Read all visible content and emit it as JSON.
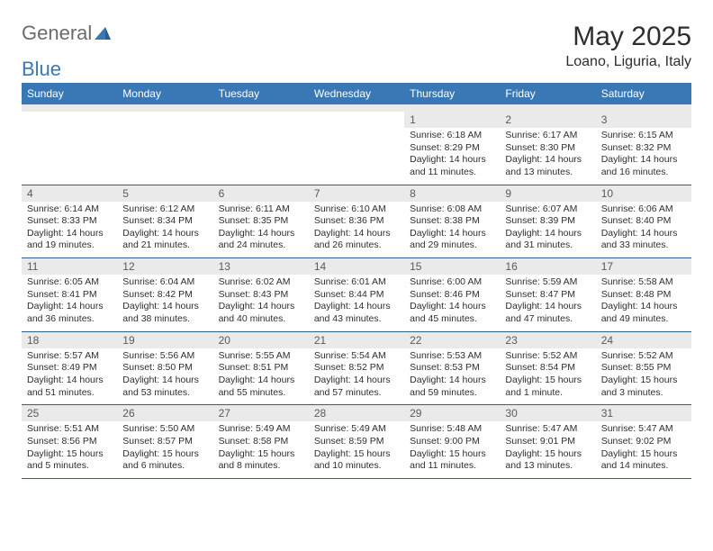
{
  "brand": {
    "part1": "General",
    "part2": "Blue"
  },
  "title": "May 2025",
  "subtitle": "Loano, Liguria, Italy",
  "colors": {
    "header_bg": "#3a78b5",
    "header_text": "#ffffff",
    "band_bg": "#eaeaea",
    "row_border": "#2f5e8a",
    "text": "#2e2e2e",
    "logo_gray": "#6b6b6b",
    "logo_blue": "#3a78b5"
  },
  "day_headers": [
    "Sunday",
    "Monday",
    "Tuesday",
    "Wednesday",
    "Thursday",
    "Friday",
    "Saturday"
  ],
  "weeks": [
    [
      null,
      null,
      null,
      null,
      {
        "n": "1",
        "sunrise": "6:18 AM",
        "sunset": "8:29 PM",
        "daylight": "14 hours and 11 minutes."
      },
      {
        "n": "2",
        "sunrise": "6:17 AM",
        "sunset": "8:30 PM",
        "daylight": "14 hours and 13 minutes."
      },
      {
        "n": "3",
        "sunrise": "6:15 AM",
        "sunset": "8:32 PM",
        "daylight": "14 hours and 16 minutes."
      }
    ],
    [
      {
        "n": "4",
        "sunrise": "6:14 AM",
        "sunset": "8:33 PM",
        "daylight": "14 hours and 19 minutes."
      },
      {
        "n": "5",
        "sunrise": "6:12 AM",
        "sunset": "8:34 PM",
        "daylight": "14 hours and 21 minutes."
      },
      {
        "n": "6",
        "sunrise": "6:11 AM",
        "sunset": "8:35 PM",
        "daylight": "14 hours and 24 minutes."
      },
      {
        "n": "7",
        "sunrise": "6:10 AM",
        "sunset": "8:36 PM",
        "daylight": "14 hours and 26 minutes."
      },
      {
        "n": "8",
        "sunrise": "6:08 AM",
        "sunset": "8:38 PM",
        "daylight": "14 hours and 29 minutes."
      },
      {
        "n": "9",
        "sunrise": "6:07 AM",
        "sunset": "8:39 PM",
        "daylight": "14 hours and 31 minutes."
      },
      {
        "n": "10",
        "sunrise": "6:06 AM",
        "sunset": "8:40 PM",
        "daylight": "14 hours and 33 minutes."
      }
    ],
    [
      {
        "n": "11",
        "sunrise": "6:05 AM",
        "sunset": "8:41 PM",
        "daylight": "14 hours and 36 minutes."
      },
      {
        "n": "12",
        "sunrise": "6:04 AM",
        "sunset": "8:42 PM",
        "daylight": "14 hours and 38 minutes."
      },
      {
        "n": "13",
        "sunrise": "6:02 AM",
        "sunset": "8:43 PM",
        "daylight": "14 hours and 40 minutes."
      },
      {
        "n": "14",
        "sunrise": "6:01 AM",
        "sunset": "8:44 PM",
        "daylight": "14 hours and 43 minutes."
      },
      {
        "n": "15",
        "sunrise": "6:00 AM",
        "sunset": "8:46 PM",
        "daylight": "14 hours and 45 minutes."
      },
      {
        "n": "16",
        "sunrise": "5:59 AM",
        "sunset": "8:47 PM",
        "daylight": "14 hours and 47 minutes."
      },
      {
        "n": "17",
        "sunrise": "5:58 AM",
        "sunset": "8:48 PM",
        "daylight": "14 hours and 49 minutes."
      }
    ],
    [
      {
        "n": "18",
        "sunrise": "5:57 AM",
        "sunset": "8:49 PM",
        "daylight": "14 hours and 51 minutes."
      },
      {
        "n": "19",
        "sunrise": "5:56 AM",
        "sunset": "8:50 PM",
        "daylight": "14 hours and 53 minutes."
      },
      {
        "n": "20",
        "sunrise": "5:55 AM",
        "sunset": "8:51 PM",
        "daylight": "14 hours and 55 minutes."
      },
      {
        "n": "21",
        "sunrise": "5:54 AM",
        "sunset": "8:52 PM",
        "daylight": "14 hours and 57 minutes."
      },
      {
        "n": "22",
        "sunrise": "5:53 AM",
        "sunset": "8:53 PM",
        "daylight": "14 hours and 59 minutes."
      },
      {
        "n": "23",
        "sunrise": "5:52 AM",
        "sunset": "8:54 PM",
        "daylight": "15 hours and 1 minute."
      },
      {
        "n": "24",
        "sunrise": "5:52 AM",
        "sunset": "8:55 PM",
        "daylight": "15 hours and 3 minutes."
      }
    ],
    [
      {
        "n": "25",
        "sunrise": "5:51 AM",
        "sunset": "8:56 PM",
        "daylight": "15 hours and 5 minutes."
      },
      {
        "n": "26",
        "sunrise": "5:50 AM",
        "sunset": "8:57 PM",
        "daylight": "15 hours and 6 minutes."
      },
      {
        "n": "27",
        "sunrise": "5:49 AM",
        "sunset": "8:58 PM",
        "daylight": "15 hours and 8 minutes."
      },
      {
        "n": "28",
        "sunrise": "5:49 AM",
        "sunset": "8:59 PM",
        "daylight": "15 hours and 10 minutes."
      },
      {
        "n": "29",
        "sunrise": "5:48 AM",
        "sunset": "9:00 PM",
        "daylight": "15 hours and 11 minutes."
      },
      {
        "n": "30",
        "sunrise": "5:47 AM",
        "sunset": "9:01 PM",
        "daylight": "15 hours and 13 minutes."
      },
      {
        "n": "31",
        "sunrise": "5:47 AM",
        "sunset": "9:02 PM",
        "daylight": "15 hours and 14 minutes."
      }
    ]
  ],
  "labels": {
    "sunrise": "Sunrise:",
    "sunset": "Sunset:",
    "daylight": "Daylight:"
  }
}
